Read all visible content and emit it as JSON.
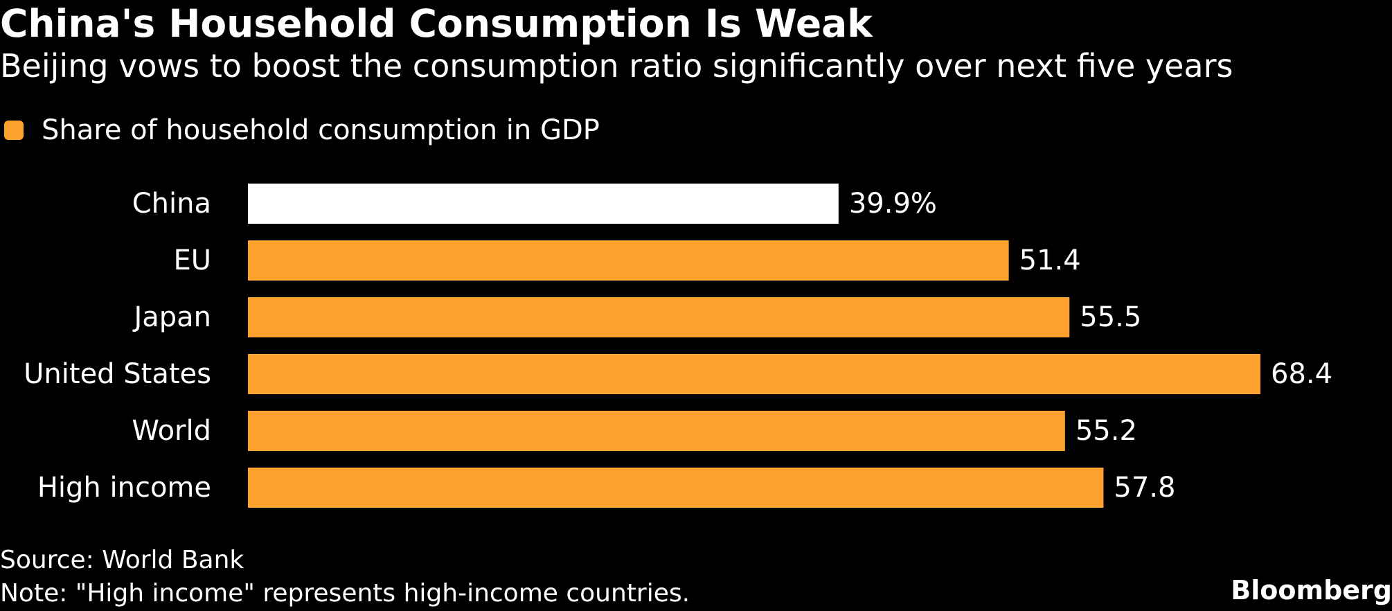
{
  "colors": {
    "background": "#000000",
    "highlight_bar": "#ffffff",
    "bar": "#ffa12e",
    "text": "#ffffff"
  },
  "chart_data": {
    "type": "bar",
    "orientation": "horizontal",
    "title": "China's Household Consumption Is Weak",
    "subtitle": "Beijing vows to boost the consumption ratio significantly over next five years",
    "legend": [
      "Share of household consumption in GDP"
    ],
    "categories": [
      "China",
      "EU",
      "Japan",
      "United States",
      "World",
      "High income"
    ],
    "values": [
      39.9,
      51.4,
      55.5,
      68.4,
      55.2,
      57.8
    ],
    "value_labels": [
      "39.9%",
      "51.4",
      "55.5",
      "68.4",
      "55.2",
      "57.8"
    ],
    "highlight": "China",
    "xlim": [
      0,
      68.4
    ],
    "xlabel": "",
    "ylabel": "",
    "grid": false
  },
  "footer": {
    "source": "Source: World Bank",
    "note": "Note: \"High income\" represents high-income countries.",
    "brand": "Bloomberg"
  }
}
